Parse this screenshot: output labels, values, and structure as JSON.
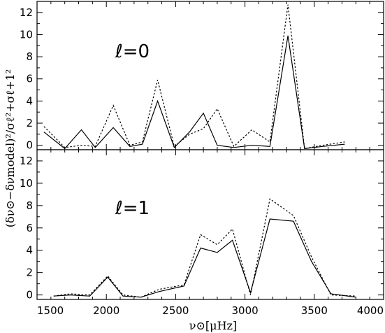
{
  "chart_data": [
    {
      "type": "line",
      "panel_label": "ℓ=0",
      "x": [
        1550,
        1700,
        1820,
        1920,
        2050,
        2170,
        2260,
        2370,
        2490,
        2600,
        2700,
        2800,
        2920,
        3050,
        3180,
        3310,
        3430,
        3560,
        3720
      ],
      "ylim": [
        -0.4,
        13
      ],
      "yticks": [
        0,
        2,
        4,
        6,
        8,
        10,
        12
      ],
      "series": [
        {
          "values": [
            1.2,
            -0.3,
            1.4,
            -0.2,
            1.6,
            -0.1,
            0.1,
            4.0,
            -0.2,
            1.2,
            2.9,
            0.0,
            -0.2,
            0.0,
            -0.1,
            9.9,
            -0.3,
            -0.1,
            0.1
          ],
          "style": "solid"
        },
        {
          "values": [
            1.7,
            -0.2,
            0.0,
            -0.1,
            3.6,
            0.0,
            0.3,
            5.9,
            -0.1,
            1.0,
            1.5,
            3.3,
            -0.1,
            1.4,
            0.3,
            12.7,
            -0.3,
            0.0,
            0.3
          ],
          "style": "dotted"
        }
      ]
    },
    {
      "type": "line",
      "panel_label": "ℓ=1",
      "x": [
        1620,
        1740,
        1880,
        2010,
        2120,
        2250,
        2380,
        2560,
        2680,
        2800,
        2910,
        3040,
        3180,
        3350,
        3480,
        3620,
        3800
      ],
      "ylim": [
        -0.4,
        13
      ],
      "yticks": [
        0,
        2,
        4,
        6,
        8,
        10,
        12
      ],
      "series": [
        {
          "values": [
            -0.1,
            0.0,
            -0.1,
            1.6,
            -0.1,
            -0.2,
            0.3,
            0.8,
            4.2,
            3.8,
            4.9,
            0.2,
            6.8,
            6.6,
            3.0,
            0.1,
            -0.2
          ],
          "style": "solid"
        },
        {
          "values": [
            -0.1,
            0.1,
            0.0,
            1.7,
            0.0,
            -0.2,
            0.5,
            0.9,
            5.4,
            4.5,
            5.9,
            0.0,
            8.6,
            7.1,
            3.4,
            0.0,
            -0.1
          ],
          "style": "dotted"
        }
      ]
    }
  ],
  "x_axis": {
    "xlim": [
      1500,
      4000
    ],
    "ticks": [
      1500,
      2000,
      2500,
      3000,
      3500,
      4000
    ],
    "label": "ν⊙[μHz]"
  },
  "y_axis": {
    "label": "(δν⊙−δνmodel)²/σℓ²+σℓ+1²"
  }
}
